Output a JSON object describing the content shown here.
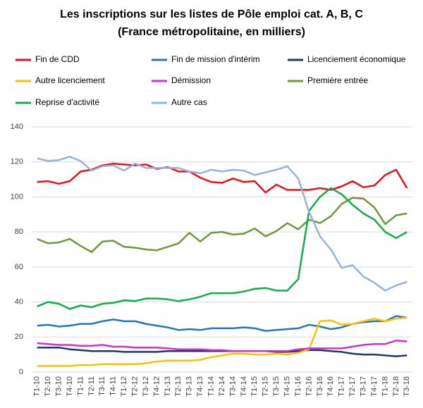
{
  "chart_data": {
    "type": "line",
    "title": "Les inscriptions  sur les listes de Pôle emploi cat. A, B, C",
    "subtitle": "(France métropolitaine,  en milliers)",
    "categories": [
      "T1-10",
      "T2-10",
      "T3-10",
      "T4-10",
      "T1-11",
      "T2-11",
      "T3-11",
      "T4-11",
      "T1-12",
      "T2-12",
      "T3-12",
      "T4-12",
      "T1-13",
      "T2-13",
      "T3-13",
      "T4-13",
      "T1-14",
      "T2-14",
      "T3-14",
      "T4-14",
      "T1-15",
      "T2-15",
      "T3-15",
      "T4-15",
      "T1-16",
      "T2-16",
      "T3-16",
      "T4-16",
      "T1-17",
      "T2-17",
      "T3-17",
      "T4-17",
      "T1-18",
      "T2-18",
      "T3-18"
    ],
    "series": [
      {
        "name": "Fin de CDD",
        "color": "#e8101a",
        "values": [
          108.5,
          109,
          107.5,
          109,
          114.5,
          115.5,
          118,
          119,
          118.5,
          118,
          118.5,
          116,
          117,
          114.5,
          114.5,
          111,
          108.5,
          108,
          110.5,
          108.5,
          109,
          102.5,
          107,
          104,
          104,
          104,
          105,
          104,
          106,
          109,
          105.5,
          106.5,
          112.5,
          115.5,
          105
        ]
      },
      {
        "name": "Fin de mission d'intérim",
        "color": "#1f78c1",
        "values": [
          26.5,
          27,
          26,
          26.5,
          27.5,
          27.5,
          29,
          30,
          29,
          29,
          27.5,
          26.5,
          25.5,
          24,
          24.5,
          24,
          25,
          25,
          25,
          25.5,
          25,
          23.5,
          24,
          24.5,
          25,
          27,
          26,
          24.5,
          25.5,
          27.5,
          28.5,
          29,
          29,
          32,
          31
        ]
      },
      {
        "name": "Licenciement économique",
        "color": "#1f3864",
        "values": [
          14,
          14,
          14,
          13,
          12.5,
          12,
          12,
          12,
          11.5,
          11.5,
          11.5,
          11.5,
          12,
          12,
          12,
          12,
          12,
          12,
          12,
          12,
          12,
          12,
          11.5,
          11.5,
          12,
          12.5,
          12.5,
          12,
          11.5,
          10.5,
          10,
          10,
          9.5,
          9,
          9.5
        ]
      },
      {
        "name": "Autre licenciement",
        "color": "#ffc000",
        "values": [
          3.5,
          3.5,
          3.5,
          3.5,
          4,
          4,
          4.5,
          4.5,
          4.5,
          4.5,
          5,
          6,
          6.5,
          6.5,
          6.5,
          7,
          8.5,
          9.5,
          10.5,
          10.5,
          10,
          10,
          10.5,
          10,
          11,
          13,
          29,
          29.5,
          27,
          27.5,
          29,
          30.5,
          29,
          30.5,
          31
        ]
      },
      {
        "name": "Démission",
        "color": "#cc33cc",
        "values": [
          16.5,
          16,
          15.5,
          15.5,
          15,
          15,
          15.5,
          14.5,
          14.5,
          14,
          14,
          14,
          13.5,
          13,
          13,
          13,
          12.5,
          12.5,
          12,
          12,
          12,
          12,
          12,
          12,
          13,
          13.5,
          13.5,
          13.5,
          13.5,
          14.5,
          15.5,
          16,
          16,
          18,
          17.5
        ]
      },
      {
        "name": "Première entrée",
        "color": "#70983a",
        "values": [
          76,
          73.5,
          74,
          76,
          72,
          68.5,
          74.5,
          75,
          71.5,
          71,
          70,
          69.5,
          71.5,
          73.5,
          79.5,
          74.5,
          79.5,
          80,
          78.5,
          79,
          82,
          77.5,
          80.5,
          85,
          81.5,
          87,
          85,
          89,
          96,
          99.5,
          99,
          94,
          84.5,
          89.5,
          90.5
        ]
      },
      {
        "name": "Reprise d'activité",
        "color": "#12ad4b",
        "values": [
          37.5,
          40,
          39,
          36,
          38,
          37,
          39,
          39.5,
          41,
          40.5,
          42,
          42,
          41.5,
          40.5,
          41.5,
          43,
          45,
          45,
          45,
          46,
          47.5,
          48,
          46.5,
          46.5,
          53,
          92,
          100,
          105,
          101.5,
          95.5,
          90.5,
          87,
          80,
          76.5,
          80
        ]
      },
      {
        "name": "Autre cas",
        "color": "#95b3d7",
        "values": [
          122,
          120.5,
          121,
          123,
          120.5,
          115,
          117.5,
          118,
          115,
          119,
          116.5,
          116.5,
          116.5,
          116.5,
          114.5,
          113.5,
          115.5,
          114.5,
          115.5,
          115,
          112.5,
          114,
          115.5,
          117.5,
          110.5,
          91.5,
          77.5,
          70,
          59.5,
          61,
          54.5,
          51,
          46.5,
          49.5,
          51.5
        ]
      }
    ],
    "ylim": [
      0,
      140
    ],
    "yticks": [
      0,
      20,
      40,
      60,
      80,
      100,
      120,
      140
    ],
    "grid": true
  }
}
